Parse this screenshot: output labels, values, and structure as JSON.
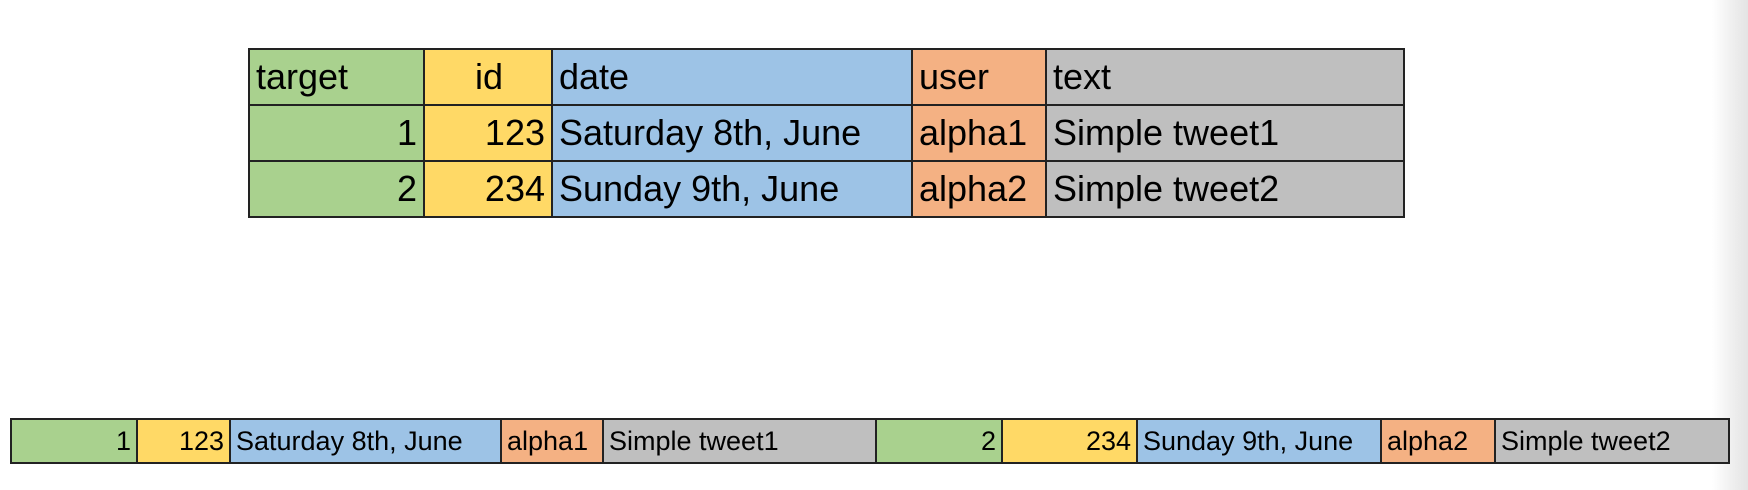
{
  "top_table": {
    "headers": [
      "target",
      "id",
      "date",
      "user",
      "text"
    ],
    "rows": [
      [
        "1",
        "123",
        "Saturday 8th, June",
        "alpha1",
        "Simple tweet1"
      ],
      [
        "2",
        "234",
        "Sunday 9th, June",
        "alpha2",
        "Simple tweet2"
      ]
    ]
  },
  "bottom_row": {
    "cells": [
      "1",
      "123",
      "Saturday 8th, June",
      "alpha1",
      "Simple tweet1",
      "2",
      "234",
      "Sunday 9th, June",
      "alpha2",
      "Simple tweet2"
    ]
  },
  "colors": {
    "target": "#a9d18e",
    "id": "#ffd966",
    "date": "#9dc3e6",
    "user": "#f4b183",
    "text": "#bfbfbf"
  }
}
